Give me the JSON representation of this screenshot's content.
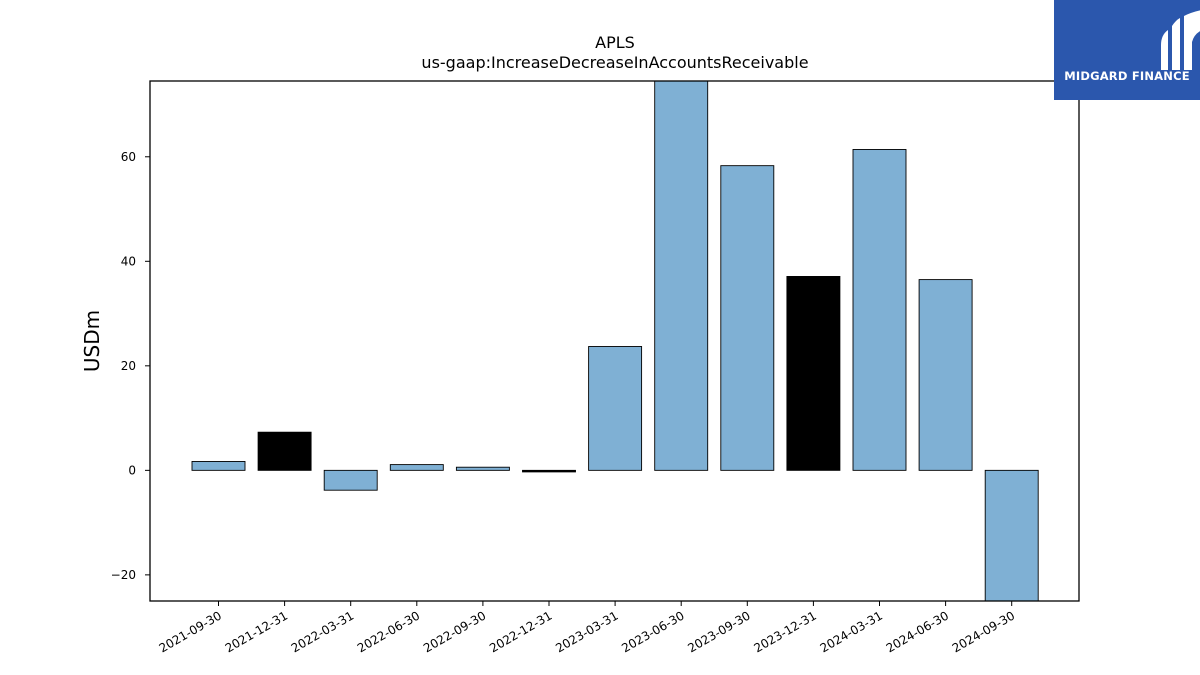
{
  "brand": {
    "name": "MIDGARD FINANCE",
    "logo_icon": "midgard-m-logo-icon",
    "background_color": "#2b57ad"
  },
  "chart_data": {
    "type": "bar",
    "title": "APLS",
    "subtitle": "us-gaap:IncreaseDecreaseInAccountsReceivable",
    "ylabel": "USDm",
    "xlabel": "",
    "ylim": [
      -25,
      74.5
    ],
    "yticks": [
      -20,
      0,
      20,
      40,
      60
    ],
    "ytick_labels": [
      "−20",
      "0",
      "20",
      "40",
      "60"
    ],
    "grid": false,
    "categories": [
      "2021-09-30",
      "2021-12-31",
      "2022-03-31",
      "2022-06-30",
      "2022-09-30",
      "2022-12-31",
      "2023-03-31",
      "2023-06-30",
      "2023-09-30",
      "2023-12-31",
      "2024-03-31",
      "2024-06-30",
      "2024-09-30"
    ],
    "values": [
      1.7,
      7.3,
      -3.8,
      1.1,
      0.6,
      -0.3,
      23.7,
      74.5,
      58.3,
      37.1,
      61.4,
      36.5,
      -25.0
    ],
    "bar_colors": [
      "#7fb0d4",
      "#000000",
      "#7fb0d4",
      "#7fb0d4",
      "#7fb0d4",
      "#000000",
      "#7fb0d4",
      "#7fb0d4",
      "#7fb0d4",
      "#000000",
      "#7fb0d4",
      "#7fb0d4",
      "#7fb0d4"
    ]
  }
}
